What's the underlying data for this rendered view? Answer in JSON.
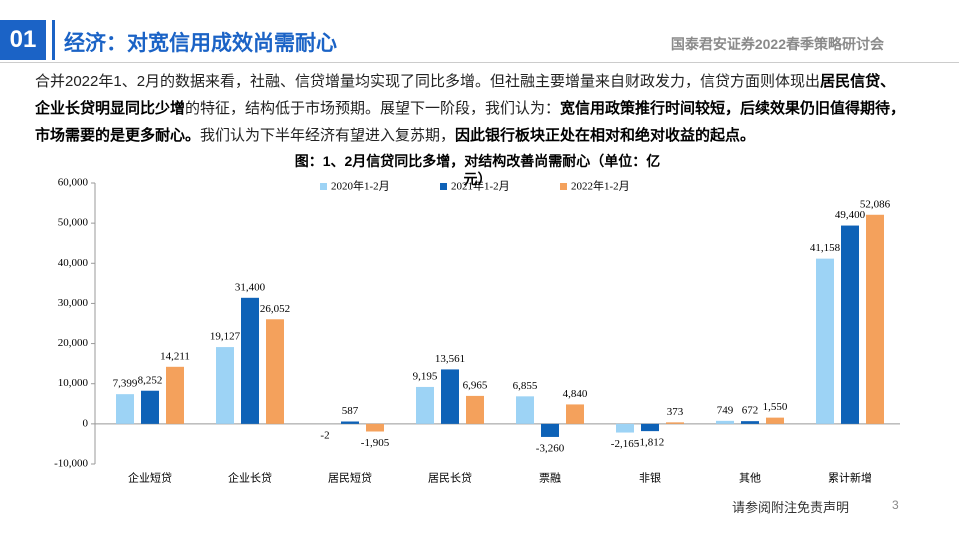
{
  "header": {
    "number": "01",
    "title": "经济：对宽信用成效尚需耐心",
    "event": "国泰君安证券2022春季策略研讨会"
  },
  "paragraph": [
    {
      "text": "合并2022年1、2月的数据来看，社融、信贷增量均实现了同比多增。但社融主要增量来自财政发力，信贷方面则体现出",
      "bold": false
    },
    {
      "text": "居民信贷、企业长贷明显同比少增",
      "bold": true
    },
    {
      "text": "的特征，结构低于市场预期。展望下一阶段，我们认为：",
      "bold": false
    },
    {
      "text": "宽信用政策推行时间较短，后续效果仍旧值得期待，市场需要的是更多耐心。",
      "bold": true
    },
    {
      "text": "我们认为下半年经济有望进入复苏期，",
      "bold": false
    },
    {
      "text": "因此银行板块正处在相对和绝对收益的起点。",
      "bold": true
    }
  ],
  "footer": {
    "disclaimer": "请参阅附注免责声明",
    "page": "3"
  },
  "chart_data": {
    "type": "bar",
    "title": "图：1、2月信贷同比多增，对结构改善尚需耐心（单位：亿元）",
    "categories": [
      "企业短贷",
      "企业长贷",
      "居民短贷",
      "居民长贷",
      "票融",
      "非银",
      "其他",
      "累计新增"
    ],
    "series": [
      {
        "name": "2020年1-2月",
        "color": "#9dd3f5",
        "values": [
          7399,
          19127,
          -2,
          9195,
          6855,
          -2165,
          749,
          41158
        ],
        "value_labels": [
          "7,399",
          "19,127",
          "-2",
          "9,195",
          "6,855",
          "-2,165",
          "749",
          "41,158"
        ]
      },
      {
        "name": "2021年1-2月",
        "color": "#0e62b7",
        "values": [
          8252,
          31400,
          587,
          13561,
          -3260,
          -1812,
          672,
          49400
        ],
        "value_labels": [
          "8,252",
          "31,400",
          "587",
          "13,561",
          "-3,260",
          "-1,812",
          "672",
          "49,400"
        ]
      },
      {
        "name": "2022年1-2月",
        "color": "#f4a15c",
        "values": [
          14211,
          26052,
          -1905,
          6965,
          4840,
          373,
          1550,
          52086
        ],
        "value_labels": [
          "14,211",
          "26,052",
          "-1,905",
          "6,965",
          "4,840",
          "373",
          "1,550",
          "52,086"
        ]
      }
    ],
    "ylim": [
      -10000,
      60000
    ],
    "yticks": [
      {
        "value": -10000,
        "label": "-10,000"
      },
      0,
      {
        "value": 10000,
        "label": "10,000"
      },
      {
        "value": 20000,
        "label": "20,000"
      },
      {
        "value": 30000,
        "label": "30,000"
      },
      {
        "value": 40000,
        "label": "40,000"
      },
      {
        "value": 50000,
        "label": "50,000"
      },
      {
        "value": 60000,
        "label": "60,000"
      }
    ],
    "legend": "top"
  }
}
